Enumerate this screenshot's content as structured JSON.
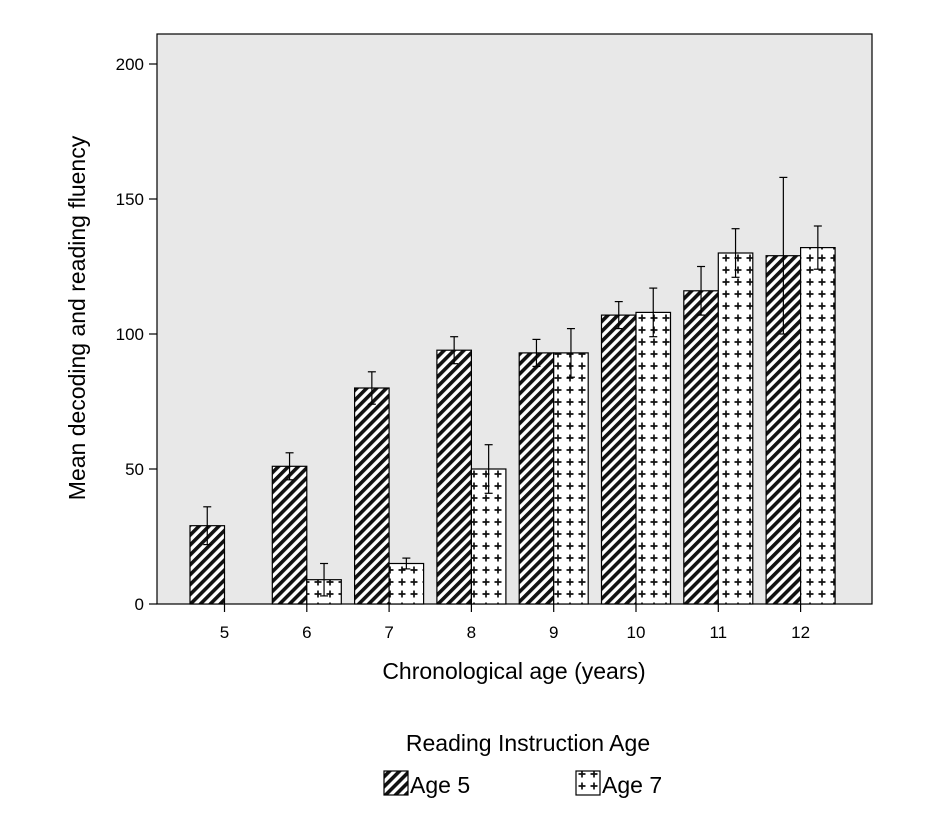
{
  "chart_data": {
    "type": "bar",
    "title": "",
    "xlabel": "Chronological age (years)",
    "ylabel": "Mean decoding and reading fluency",
    "categories": [
      "5",
      "6",
      "7",
      "8",
      "9",
      "10",
      "11",
      "12"
    ],
    "ylim": [
      0,
      210
    ],
    "yticks": [
      "0",
      "50",
      "100",
      "150",
      "200"
    ],
    "grid": false,
    "plot_background": "#e8e8e8",
    "legend": {
      "title": "Reading Instruction Age",
      "placement": "bottom-center"
    },
    "series": [
      {
        "name": "Age 5",
        "pattern": "diagonal-hatch",
        "values": [
          29,
          51,
          80,
          94,
          93,
          107,
          116,
          129
        ],
        "error_upper": [
          36,
          56,
          86,
          99,
          98,
          112,
          125,
          158
        ],
        "error_lower": [
          22,
          46,
          74,
          89,
          88,
          102,
          107,
          100
        ]
      },
      {
        "name": "Age 7",
        "pattern": "cross-plus",
        "values": [
          null,
          9,
          15,
          50,
          93,
          108,
          130,
          132
        ],
        "error_upper": [
          null,
          15,
          17,
          59,
          102,
          117,
          139,
          140
        ],
        "error_lower": [
          null,
          3,
          13,
          41,
          84,
          99,
          121,
          124
        ]
      }
    ]
  }
}
